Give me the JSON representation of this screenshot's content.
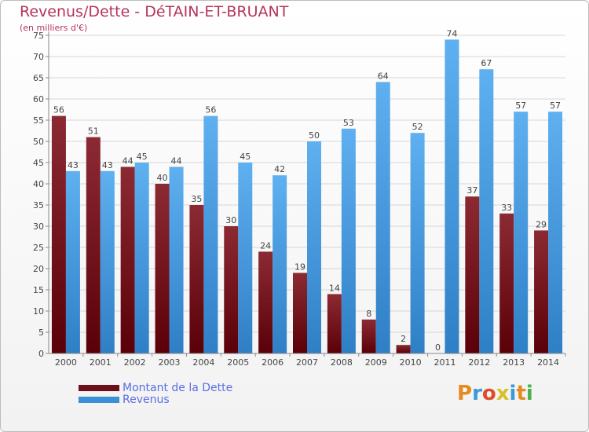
{
  "header": {
    "title": "Revenus/Dette - DéTAIN-ET-BRUANT",
    "subtitle": "(en milliers d'€)"
  },
  "colors": {
    "dette": "#6b0f1a",
    "revenus": "#3a8fd6",
    "title": "#b5345a",
    "legend_text": "#5a6fe0"
  },
  "legend": {
    "dette_label": "Montant de la Dette",
    "revenus_label": "Revenus"
  },
  "logo": {
    "text": "Proxiti"
  },
  "chart_data": {
    "type": "bar",
    "title": "Revenus/Dette - DéTAIN-ET-BRUANT",
    "subtitle": "(en milliers d'€)",
    "xlabel": "",
    "ylabel": "",
    "ylim": [
      0,
      75
    ],
    "ytick_step": 5,
    "grid": true,
    "legend_position": "bottom-left",
    "categories": [
      "2000",
      "2001",
      "2002",
      "2003",
      "2004",
      "2005",
      "2006",
      "2007",
      "2008",
      "2009",
      "2010",
      "2011",
      "2012",
      "2013",
      "2014"
    ],
    "series": [
      {
        "name": "Montant de la Dette",
        "values": [
          56,
          51,
          44,
          40,
          35,
          30,
          24,
          19,
          14,
          8,
          2,
          0,
          37,
          33,
          29
        ]
      },
      {
        "name": "Revenus",
        "values": [
          43,
          43,
          45,
          44,
          56,
          45,
          42,
          50,
          53,
          64,
          52,
          74,
          67,
          57,
          57
        ]
      }
    ]
  }
}
